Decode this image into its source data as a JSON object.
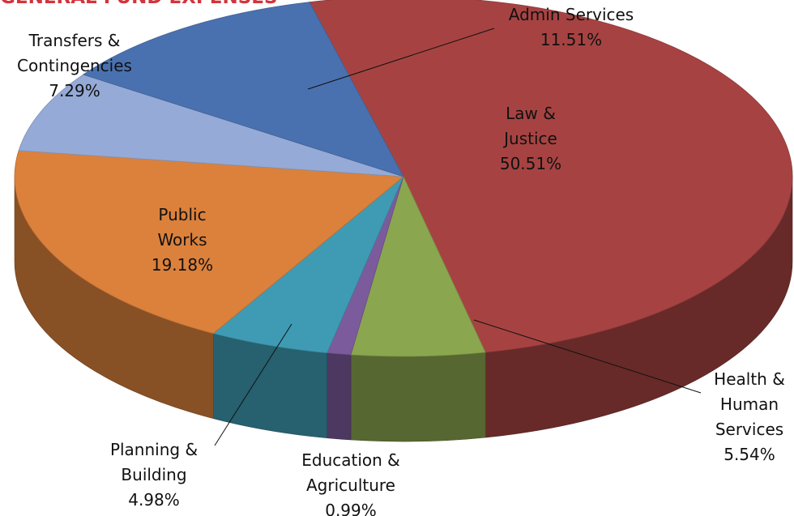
{
  "chart_data": {
    "type": "pie3d",
    "title": "GENERAL FUND EXPENSES",
    "categories": [
      "Law & Justice",
      "Health & Human Services",
      "Education & Agriculture",
      "Planning & Building",
      "Public Works",
      "Transfers & Contingencies",
      "Admin Services"
    ],
    "values": [
      50.51,
      5.54,
      0.99,
      4.98,
      19.18,
      7.29,
      11.51
    ],
    "value_labels": [
      "50.51%",
      "5.54%",
      "0.99%",
      "4.98%",
      "19.18%",
      "7.29%",
      "11.51%"
    ],
    "colors": [
      "#a64342",
      "#8aa64f",
      "#7b5b9c",
      "#3f9bb3",
      "#db813c",
      "#95aad6",
      "#4a71af"
    ]
  }
}
